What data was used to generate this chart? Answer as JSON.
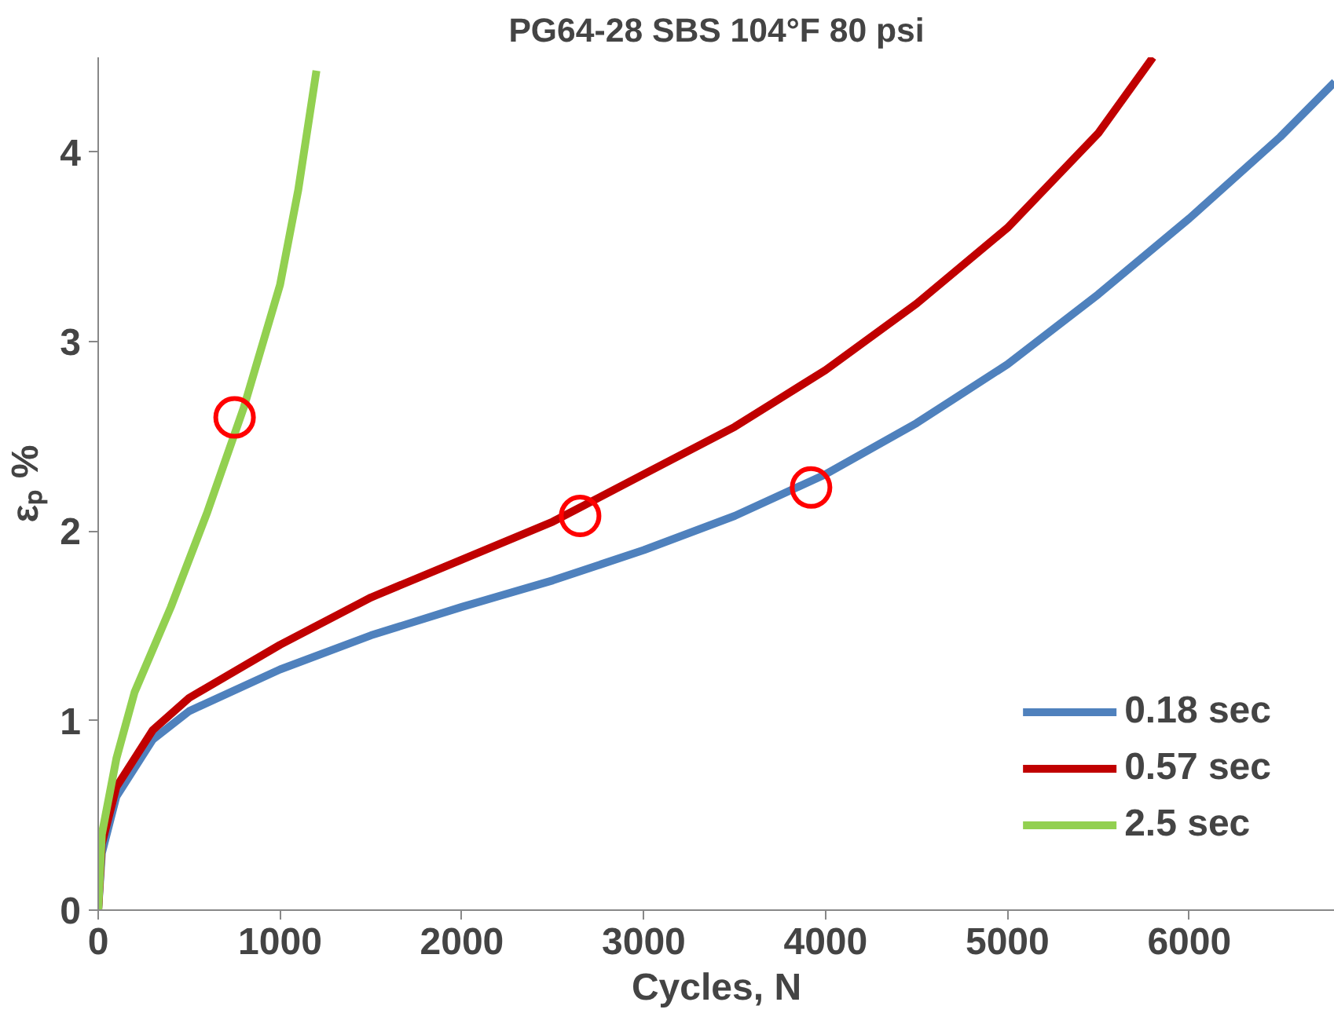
{
  "chart_data": {
    "type": "line",
    "title": "PG64-28 SBS 104°F 80 psi",
    "xlabel": "Cycles, N",
    "ylabel": "εₚ %",
    "xlim": [
      0,
      6800
    ],
    "ylim": [
      0,
      4.5
    ],
    "xticks": [
      0,
      1000,
      2000,
      3000,
      4000,
      5000,
      6000
    ],
    "yticks": [
      0,
      1,
      2,
      3,
      4
    ],
    "grid": false,
    "legend": "bottom right",
    "marker": "none",
    "line_style": "solid",
    "series": [
      {
        "name": "0.18 sec",
        "color": "#4f81bd",
        "x": [
          0,
          20,
          100,
          300,
          500,
          1000,
          1500,
          2000,
          2500,
          3000,
          3500,
          4000,
          4500,
          5000,
          5500,
          6000,
          6500,
          6800
        ],
        "values": [
          0,
          0.3,
          0.6,
          0.9,
          1.05,
          1.27,
          1.45,
          1.6,
          1.74,
          1.9,
          2.08,
          2.3,
          2.57,
          2.88,
          3.25,
          3.65,
          4.08,
          4.37
        ]
      },
      {
        "name": "0.57 sec",
        "color": "#c00000",
        "x": [
          0,
          20,
          100,
          300,
          500,
          1000,
          1500,
          2000,
          2500,
          3000,
          3500,
          4000,
          4500,
          5000,
          5500,
          5800
        ],
        "values": [
          0,
          0.35,
          0.65,
          0.95,
          1.12,
          1.4,
          1.65,
          1.85,
          2.05,
          2.3,
          2.55,
          2.85,
          3.2,
          3.6,
          4.1,
          4.5
        ]
      },
      {
        "name": "2.5 sec",
        "color": "#92d050",
        "x": [
          0,
          20,
          100,
          200,
          400,
          600,
          800,
          1000,
          1100,
          1200
        ],
        "values": [
          0,
          0.4,
          0.8,
          1.15,
          1.6,
          2.1,
          2.65,
          3.3,
          3.8,
          4.43
        ]
      },
      {
        "type": "scatter",
        "marker": "circle",
        "color": "#ff0000",
        "x": [
          750,
          2650,
          3920
        ],
        "values": [
          2.6,
          2.08,
          2.23
        ]
      }
    ]
  }
}
